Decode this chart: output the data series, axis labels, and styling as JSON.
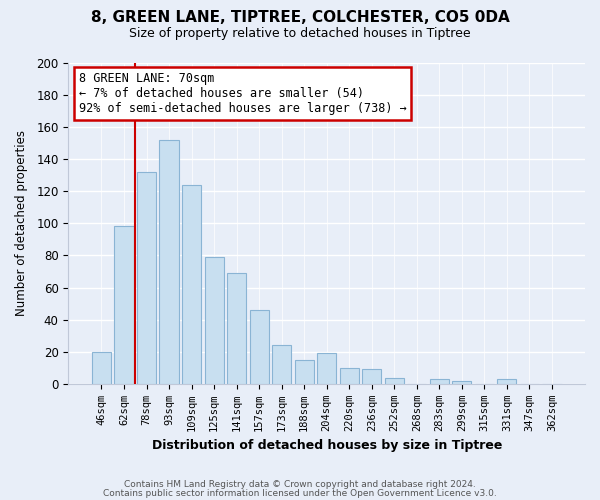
{
  "title": "8, GREEN LANE, TIPTREE, COLCHESTER, CO5 0DA",
  "subtitle": "Size of property relative to detached houses in Tiptree",
  "xlabel": "Distribution of detached houses by size in Tiptree",
  "ylabel": "Number of detached properties",
  "bar_labels": [
    "46sqm",
    "62sqm",
    "78sqm",
    "93sqm",
    "109sqm",
    "125sqm",
    "141sqm",
    "157sqm",
    "173sqm",
    "188sqm",
    "204sqm",
    "220sqm",
    "236sqm",
    "252sqm",
    "268sqm",
    "283sqm",
    "299sqm",
    "315sqm",
    "331sqm",
    "347sqm",
    "362sqm"
  ],
  "bar_values": [
    20,
    98,
    132,
    152,
    124,
    79,
    69,
    46,
    24,
    15,
    19,
    10,
    9,
    4,
    0,
    3,
    2,
    0,
    3,
    0,
    0
  ],
  "bar_color": "#c8dff0",
  "bar_edge_color": "#8ab4d4",
  "ylim": [
    0,
    200
  ],
  "yticks": [
    0,
    20,
    40,
    60,
    80,
    100,
    120,
    140,
    160,
    180,
    200
  ],
  "property_line_x": 1.5,
  "property_line_color": "#cc0000",
  "annotation_title": "8 GREEN LANE: 70sqm",
  "annotation_line1": "← 7% of detached houses are smaller (54)",
  "annotation_line2": "92% of semi-detached houses are larger (738) →",
  "annotation_box_color": "#ffffff",
  "annotation_box_edge_color": "#cc0000",
  "footer_line1": "Contains HM Land Registry data © Crown copyright and database right 2024.",
  "footer_line2": "Contains public sector information licensed under the Open Government Licence v3.0.",
  "background_color": "#e8eef8",
  "grid_color": "#ffffff",
  "spine_color": "#c0c8d8"
}
